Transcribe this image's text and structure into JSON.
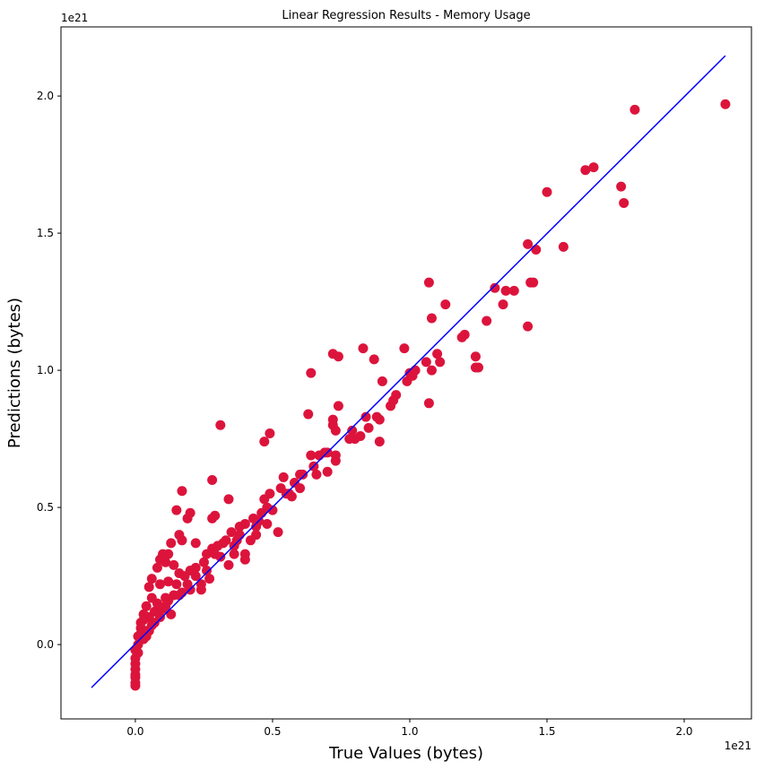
{
  "chart_data": {
    "type": "scatter",
    "title": "Linear Regression Results - Memory Usage",
    "x_label": "True Values (bytes)",
    "y_label": "Predictions (bytes)",
    "x_offset": "1e21",
    "y_offset": "1e21",
    "color": "#dc143c",
    "x": [
      2.15,
      1.82,
      1.67,
      1.64,
      1.5,
      1.77,
      1.78,
      1.43,
      1.56,
      1.46,
      1.44,
      1.45,
      1.31,
      1.35,
      1.38,
      1.34,
      1.07,
      1.13,
      1.08,
      1.28,
      1.43,
      1.2,
      1.19,
      0.98,
      0.83,
      0.72,
      0.74,
      1.1,
      1.24,
      1.11,
      1.25,
      1.24,
      0.87,
      1.06,
      1.02,
      1,
      1.08,
      0.64,
      1.01,
      0.99,
      0.9,
      0.95,
      0.94,
      0.93,
      1.07,
      0.74,
      0.63,
      0.84,
      0.88,
      0.89,
      0.72,
      0.72,
      0.31,
      0.73,
      0.85,
      0.79,
      0.82,
      0.8,
      0.78,
      0.49,
      0.47,
      0.89,
      0.69,
      0.73,
      0.7,
      0.67,
      0.64,
      0.73,
      0.7,
      0.66,
      0.65,
      0.28,
      0.6,
      0.61,
      0.58,
      0.6,
      0.54,
      0.57,
      0.56,
      0.55,
      0.17,
      0.34,
      0.49,
      0.47,
      0.53,
      0.5,
      0.48,
      0.46,
      0.15,
      0.2,
      0.19,
      0.29,
      0.28,
      0.45,
      0.43,
      0.4,
      0.38,
      0.35,
      0.52,
      0.44,
      0.42,
      0.37,
      0.33,
      0.3,
      0.28,
      0.26,
      0.16,
      0.17,
      0.13,
      0.22,
      0.4,
      0.4,
      0.36,
      0.34,
      0.12,
      0.1,
      0.09,
      0.11,
      0.14,
      0.25,
      0.22,
      0.2,
      0.18,
      0.16,
      0.08,
      0.06,
      0.09,
      0.05,
      0.12,
      0.15,
      0.24,
      0.27,
      0.24,
      0.2,
      0.17,
      0.14,
      0.11,
      0.08,
      0.13,
      0.1,
      0.07,
      0.05,
      0.03,
      0.06,
      0.04,
      0.02,
      0.01,
      0.03,
      0.01,
      0,
      0.01,
      0,
      0,
      0,
      0,
      0,
      0,
      0,
      0.02,
      0.12,
      0.19,
      0.22,
      0.31,
      0.36,
      0.38,
      0.44,
      0.48,
      0.05,
      0.02,
      0.04,
      0.07,
      0.09,
      0.11,
      0.16,
      0.26,
      0.29,
      0.32,
      0.06,
      0.04,
      0.03
    ],
    "y": [
      1.97,
      1.95,
      1.74,
      1.73,
      1.65,
      1.67,
      1.61,
      1.46,
      1.45,
      1.44,
      1.32,
      1.32,
      1.3,
      1.29,
      1.29,
      1.24,
      1.32,
      1.24,
      1.19,
      1.18,
      1.16,
      1.13,
      1.12,
      1.08,
      1.08,
      1.06,
      1.05,
      1.06,
      1.05,
      1.03,
      1.01,
      1.01,
      1.04,
      1.03,
      1,
      0.99,
      1,
      0.99,
      0.98,
      0.96,
      0.96,
      0.91,
      0.89,
      0.87,
      0.88,
      0.87,
      0.84,
      0.83,
      0.83,
      0.82,
      0.82,
      0.8,
      0.8,
      0.78,
      0.79,
      0.78,
      0.76,
      0.75,
      0.75,
      0.77,
      0.74,
      0.74,
      0.7,
      0.69,
      0.7,
      0.69,
      0.69,
      0.67,
      0.63,
      0.62,
      0.65,
      0.6,
      0.62,
      0.62,
      0.59,
      0.57,
      0.61,
      0.54,
      0.55,
      0.55,
      0.56,
      0.53,
      0.55,
      0.53,
      0.57,
      0.49,
      0.5,
      0.48,
      0.49,
      0.48,
      0.46,
      0.47,
      0.46,
      0.45,
      0.46,
      0.44,
      0.43,
      0.41,
      0.41,
      0.4,
      0.38,
      0.38,
      0.38,
      0.36,
      0.35,
      0.33,
      0.4,
      0.38,
      0.37,
      0.37,
      0.33,
      0.31,
      0.33,
      0.29,
      0.33,
      0.33,
      0.31,
      0.3,
      0.29,
      0.3,
      0.28,
      0.27,
      0.25,
      0.26,
      0.28,
      0.24,
      0.22,
      0.21,
      0.23,
      0.22,
      0.2,
      0.24,
      0.22,
      0.2,
      0.19,
      0.18,
      0.17,
      0.15,
      0.11,
      0.13,
      0.12,
      0.1,
      0.09,
      0.07,
      0.05,
      0.04,
      0.03,
      0.02,
      0,
      -0.02,
      -0.03,
      -0.05,
      -0.07,
      -0.09,
      -0.11,
      -0.12,
      -0.14,
      -0.15,
      0.08,
      0.16,
      0.22,
      0.25,
      0.32,
      0.36,
      0.4,
      0.43,
      0.44,
      0.05,
      0.06,
      0.03,
      0.08,
      0.1,
      0.14,
      0.18,
      0.27,
      0.33,
      0.37,
      0.17,
      0.14,
      0.11
    ],
    "line": {
      "color": "#0000ff",
      "x": [
        -0.16,
        2.15
      ],
      "y": [
        -0.157,
        2.147
      ]
    },
    "xlim": [
      -0.271,
      2.245
    ],
    "ylim": [
      -0.271,
      2.252
    ],
    "xticks": [
      {
        "value": 0,
        "label": "0.0"
      },
      0.5,
      {
        "value": 1,
        "label": "1.0"
      },
      1.5,
      {
        "value": 2,
        "label": "2.0"
      }
    ],
    "yticks": [
      {
        "value": 0,
        "label": "0.0"
      },
      0.5,
      {
        "value": 1,
        "label": "1.0"
      },
      1.5,
      {
        "value": 2,
        "label": "2.0"
      }
    ],
    "grid": false
  }
}
